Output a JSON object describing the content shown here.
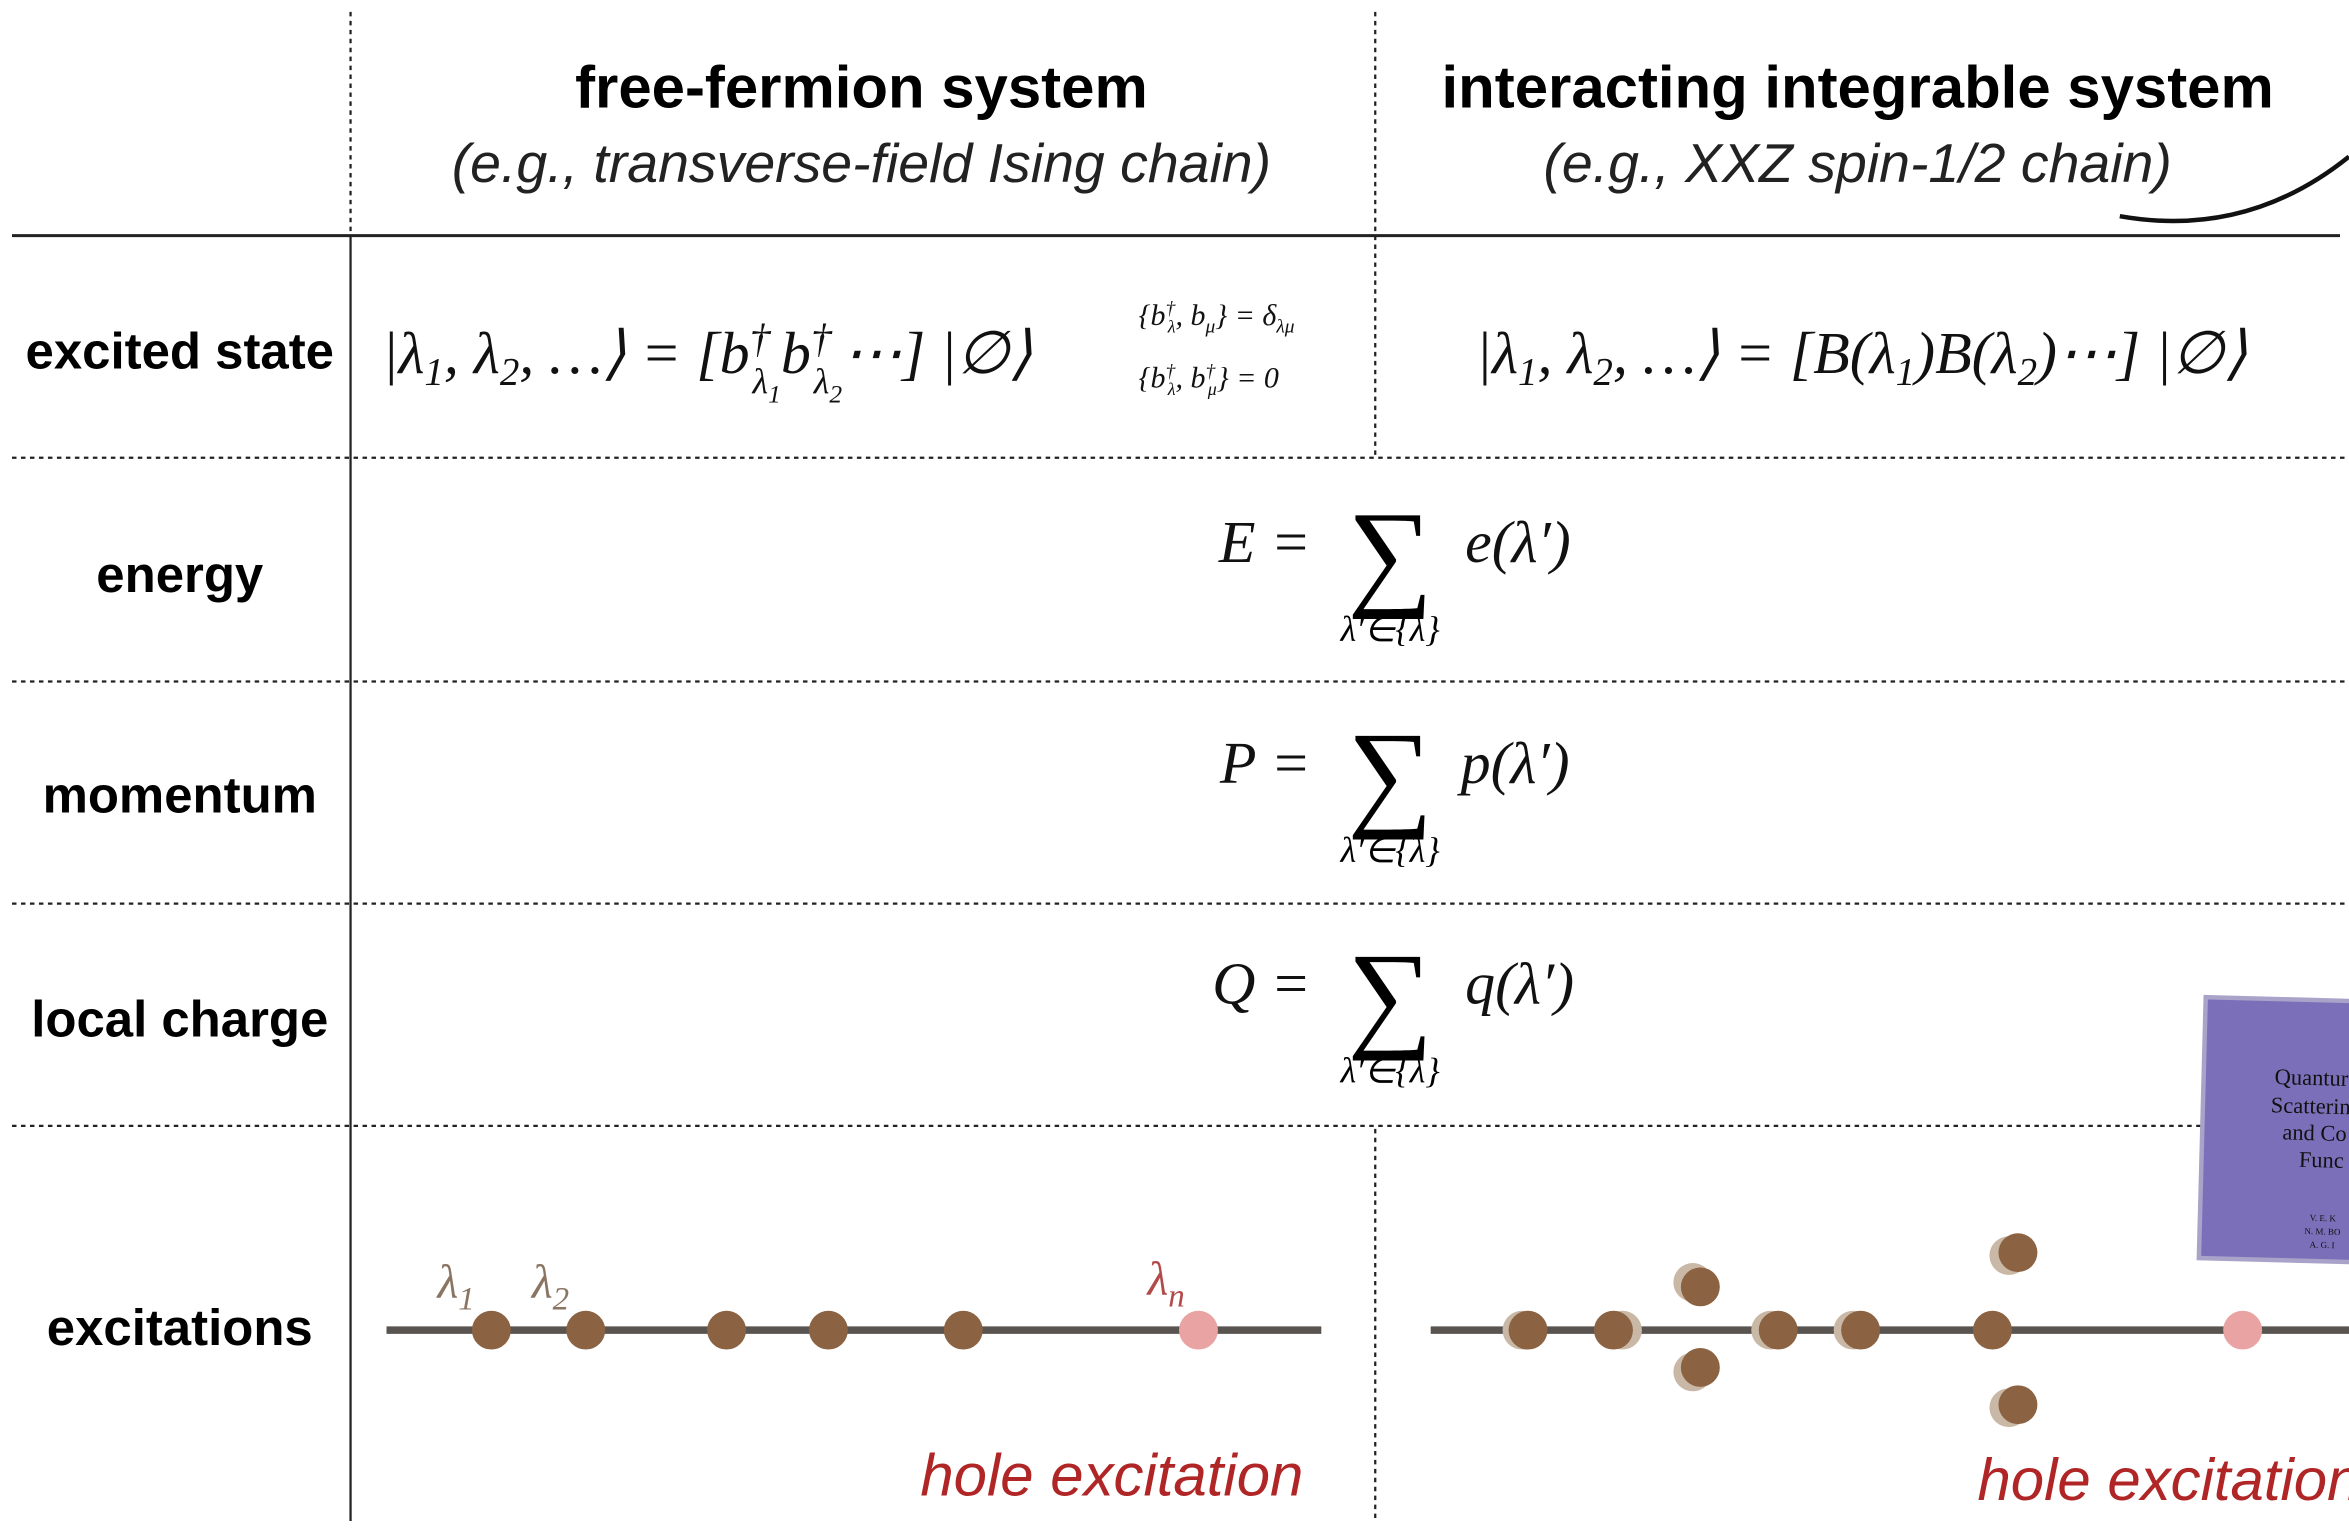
{
  "header": {
    "col1_title": "free-fermion system",
    "col1_example": "(e.g., transverse-field Ising chain)",
    "col2_title": "interacting integrable system",
    "col2_example": "(e.g., XXZ spin-1/2 chain)"
  },
  "rows": [
    "excited state",
    "energy",
    "momentum",
    "local charge",
    "excitations"
  ],
  "formulas": {
    "free_state": [
      "|λ",
      "1",
      ", λ",
      "2",
      ", …⟩ = [b",
      "†",
      "λ",
      "1",
      "b",
      "†",
      "λ",
      "2",
      "⋯] |∅⟩"
    ],
    "anticommutator_1": [
      "{b",
      "†",
      "λ",
      ", b",
      "μ",
      "} = δ",
      "λμ"
    ],
    "anticommutator_2": [
      "{b",
      "†",
      "λ",
      ", b",
      "†",
      "μ",
      "} = 0"
    ],
    "interacting_state": [
      "|λ",
      "1",
      ", λ",
      "2",
      ", …⟩ = [B(λ",
      "1",
      ")B(λ",
      "2",
      ")⋯] |∅⟩"
    ],
    "energy": {
      "lhs": "E =",
      "sum": "∑",
      "under": "λ′∈{λ}",
      "rhs": "e(λ′)"
    },
    "momentum": {
      "lhs": "P =",
      "sum": "∑",
      "under": "λ′∈{λ}",
      "rhs": "p(λ′)"
    },
    "charge": {
      "lhs": "Q =",
      "sum": "∑",
      "under": "λ′∈{λ}",
      "rhs": "q(λ′)"
    }
  },
  "excitations": {
    "labels": [
      [
        "λ",
        "1"
      ],
      [
        "λ",
        "2"
      ],
      [
        "λ",
        "n"
      ]
    ],
    "free_hole": "hole excitation",
    "interacting_hole": "hole excitation"
  },
  "book": {
    "title_lines": [
      "Quantur",
      "Scatterin",
      "and Co",
      "Func"
    ],
    "author_lines": [
      "V. E. K",
      "N. M. BO",
      "A. G. I"
    ]
  }
}
